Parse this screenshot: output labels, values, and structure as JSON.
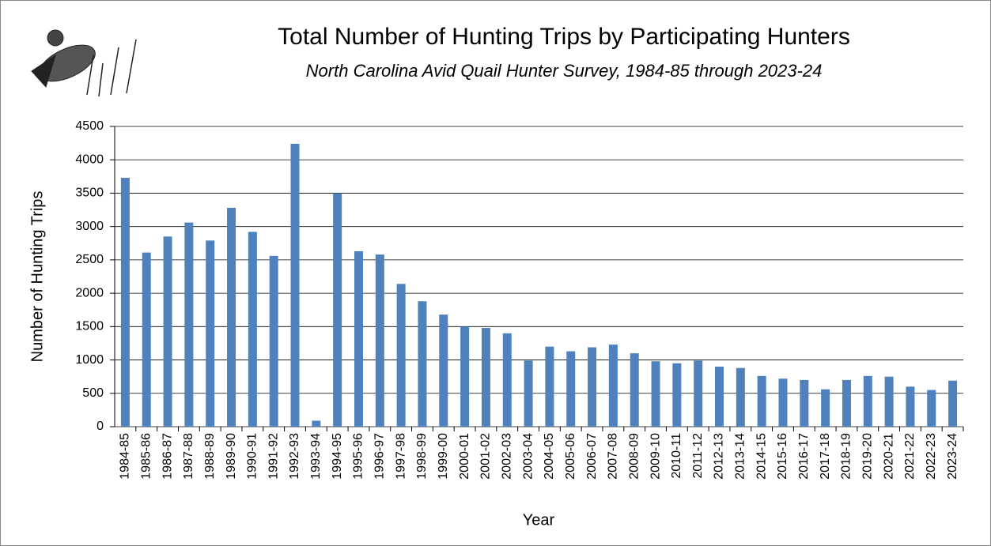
{
  "chart_data": {
    "type": "bar",
    "title": "Total Number of Hunting Trips by Participating Hunters",
    "subtitle": "North Carolina Avid Quail Hunter Survey, 1984-85 through 2023-24",
    "x_label": "Year",
    "y_label": "Number of Hunting Trips",
    "categories": [
      "1984-85",
      "1985-86",
      "1986-87",
      "1987-88",
      "1988-89",
      "1989-90",
      "1990-91",
      "1991-92",
      "1992-93",
      "1993-94",
      "1994-95",
      "1995-96",
      "1996-97",
      "1997-98",
      "1998-99",
      "1999-00",
      "2000-01",
      "2001-02",
      "2002-03",
      "2003-04",
      "2004-05",
      "2005-06",
      "2006-07",
      "2007-08",
      "2008-09",
      "2009-10",
      "2010-11",
      "2011-12",
      "2012-13",
      "2013-14",
      "2014-15",
      "2015-16",
      "2016-17",
      "2017-18",
      "2018-19",
      "2019-20",
      "2020-21",
      "2021-22",
      "2022-23",
      "2023-24"
    ],
    "values": [
      3730,
      2610,
      2850,
      3060,
      2790,
      3280,
      2920,
      2560,
      4240,
      90,
      3500,
      2630,
      2580,
      2140,
      1880,
      1680,
      1500,
      1480,
      1400,
      990,
      1200,
      1130,
      1190,
      1230,
      1100,
      980,
      950,
      990,
      900,
      880,
      760,
      720,
      700,
      560,
      700,
      760,
      750,
      600,
      550,
      690
    ],
    "color": "#4f81bd",
    "ylim": [
      0,
      4500
    ],
    "yticks": [
      0,
      500,
      1000,
      1500,
      2000,
      2500,
      3000,
      3500,
      4000,
      4500
    ],
    "grid": true
  }
}
